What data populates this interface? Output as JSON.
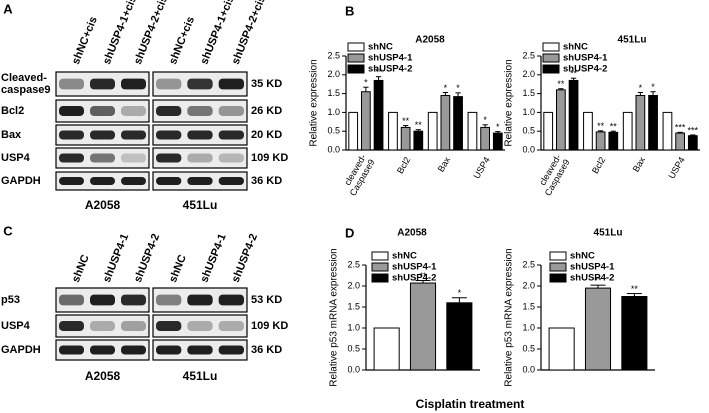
{
  "blots": [
    {
      "label": "A",
      "columns": [
        "shNC+cis",
        "shUSP4-1+cis",
        "shUSP4-2+cis"
      ],
      "rows": [
        {
          "label": "Cleaved-caspase9",
          "kd": "35 KD"
        },
        {
          "label": "Bcl2",
          "kd": "26 KD"
        },
        {
          "label": "Bax",
          "kd": "20 KD"
        },
        {
          "label": "USP4",
          "kd": "109 KD"
        },
        {
          "label": "GAPDH",
          "kd": "36 KD"
        }
      ],
      "groups": [
        "A2058",
        "451Lu"
      ]
    },
    {
      "label": "C",
      "columns": [
        "shNC",
        "shUSP4-1",
        "shUSP4-2"
      ],
      "rows": [
        {
          "label": "p53",
          "kd": "53 KD"
        },
        {
          "label": "USP4",
          "kd": "109 KD"
        },
        {
          "label": "GAPDH",
          "kd": "36 KD"
        }
      ],
      "groups": [
        "A2058",
        "451Lu"
      ]
    }
  ],
  "footer": "Cisplatin treatment",
  "chart_data": [
    {
      "type": "bar",
      "panel": "B",
      "title": "A2058",
      "y_label": "Relative expression",
      "categories": [
        "cleaved-Caspase9",
        "Bcl2",
        "Bax",
        "USP4"
      ],
      "series": [
        {
          "name": "shNC",
          "color": "#ffffff",
          "values": [
            1,
            1,
            1,
            1
          ]
        },
        {
          "name": "shUSP4-1",
          "color": "#999999",
          "values": [
            1.55,
            0.6,
            1.45,
            0.6
          ],
          "errors": [
            0.12,
            0.05,
            0.08,
            0.07
          ],
          "annotations": [
            "*",
            "**",
            "*",
            "*"
          ]
        },
        {
          "name": "shUSP4-2",
          "color": "#000000",
          "values": [
            1.85,
            0.5,
            1.42,
            0.45
          ],
          "errors": [
            0.1,
            0.04,
            0.1,
            0.04
          ],
          "annotations": [
            "**",
            "**",
            "*",
            "*"
          ]
        }
      ],
      "ylim": [
        0,
        2.5
      ],
      "yticks": [
        {
          "value": 0,
          "label": "0.0"
        },
        {
          "value": 0.5,
          "label": "0.5"
        },
        {
          "value": 1,
          "label": "1.0"
        },
        {
          "value": 1.5,
          "label": "1.5"
        },
        {
          "value": 2,
          "label": "2.0"
        },
        {
          "value": 2.5,
          "label": "2.5"
        }
      ],
      "legend": "top-left"
    },
    {
      "type": "bar",
      "title": "451Lu",
      "y_label": "Relative expression",
      "categories": [
        "cleaved-Caspase9",
        "Bcl2",
        "Bax",
        "USP4"
      ],
      "series": [
        {
          "name": "shNC",
          "color": "#ffffff",
          "values": [
            1,
            1,
            1,
            1
          ]
        },
        {
          "name": "shUSP4-1",
          "color": "#999999",
          "values": [
            1.6,
            0.48,
            1.45,
            0.45
          ],
          "errors": [
            0.03,
            0.03,
            0.08,
            0.02
          ],
          "annotations": [
            "**",
            "**",
            "*",
            "***"
          ]
        },
        {
          "name": "shUSP4-2",
          "color": "#000000",
          "values": [
            1.85,
            0.47,
            1.45,
            0.38
          ],
          "errors": [
            0.06,
            0.03,
            0.1,
            0.02
          ],
          "annotations": [
            "**",
            "**",
            "*",
            "***"
          ]
        }
      ],
      "ylim": [
        0,
        2.5
      ],
      "yticks": [
        {
          "value": 0,
          "label": "0.0"
        },
        {
          "value": 0.5,
          "label": "0.5"
        },
        {
          "value": 1,
          "label": "1.0"
        },
        {
          "value": 1.5,
          "label": "1.5"
        },
        {
          "value": 2,
          "label": "2.0"
        },
        {
          "value": 2.5,
          "label": "2.5"
        }
      ],
      "legend": "top-left"
    },
    {
      "type": "bar",
      "panel": "D",
      "title": "A2058",
      "y_label": "Relative p53 mRNA expression",
      "categories": [
        null
      ],
      "series": [
        {
          "name": "shNC",
          "color": "#ffffff",
          "values": [
            1
          ]
        },
        {
          "name": "shUSP4-1",
          "color": "#999999",
          "values": [
            2.07
          ],
          "errors": [
            0.06
          ],
          "annotations": [
            "**"
          ]
        },
        {
          "name": "shUSP4-2",
          "color": "#000000",
          "values": [
            1.6
          ],
          "errors": [
            0.12
          ],
          "annotations": [
            "*"
          ]
        }
      ],
      "ylim": [
        0,
        2.5
      ],
      "yticks": [
        {
          "value": 0,
          "label": "0.0"
        },
        {
          "value": 0.5,
          "label": "0.5"
        },
        {
          "value": 1,
          "label": "1.0"
        },
        {
          "value": 1.5,
          "label": "1.5"
        },
        {
          "value": 2,
          "label": "2.0"
        },
        {
          "value": 2.5,
          "label": "2.5"
        }
      ],
      "legend": "top-right"
    },
    {
      "type": "bar",
      "title": "451Lu",
      "y_label": "Relative p53 mRNA expression",
      "categories": [
        null
      ],
      "series": [
        {
          "name": "shNC",
          "color": "#ffffff",
          "values": [
            1
          ]
        },
        {
          "name": "shUSP4-1",
          "color": "#999999",
          "values": [
            1.95
          ],
          "errors": [
            0.07
          ],
          "annotations": [
            "**"
          ]
        },
        {
          "name": "shUSP4-2",
          "color": "#000000",
          "values": [
            1.75
          ],
          "errors": [
            0.07
          ],
          "annotations": [
            "**"
          ]
        }
      ],
      "ylim": [
        0,
        2.5
      ],
      "yticks": [
        {
          "value": 0,
          "label": "0.0"
        },
        {
          "value": 0.5,
          "label": "0.5"
        },
        {
          "value": 1,
          "label": "1.0"
        },
        {
          "value": 1.5,
          "label": "1.5"
        },
        {
          "value": 2,
          "label": "2.0"
        },
        {
          "value": 2.5,
          "label": "2.5"
        }
      ],
      "legend": "top-right"
    }
  ]
}
